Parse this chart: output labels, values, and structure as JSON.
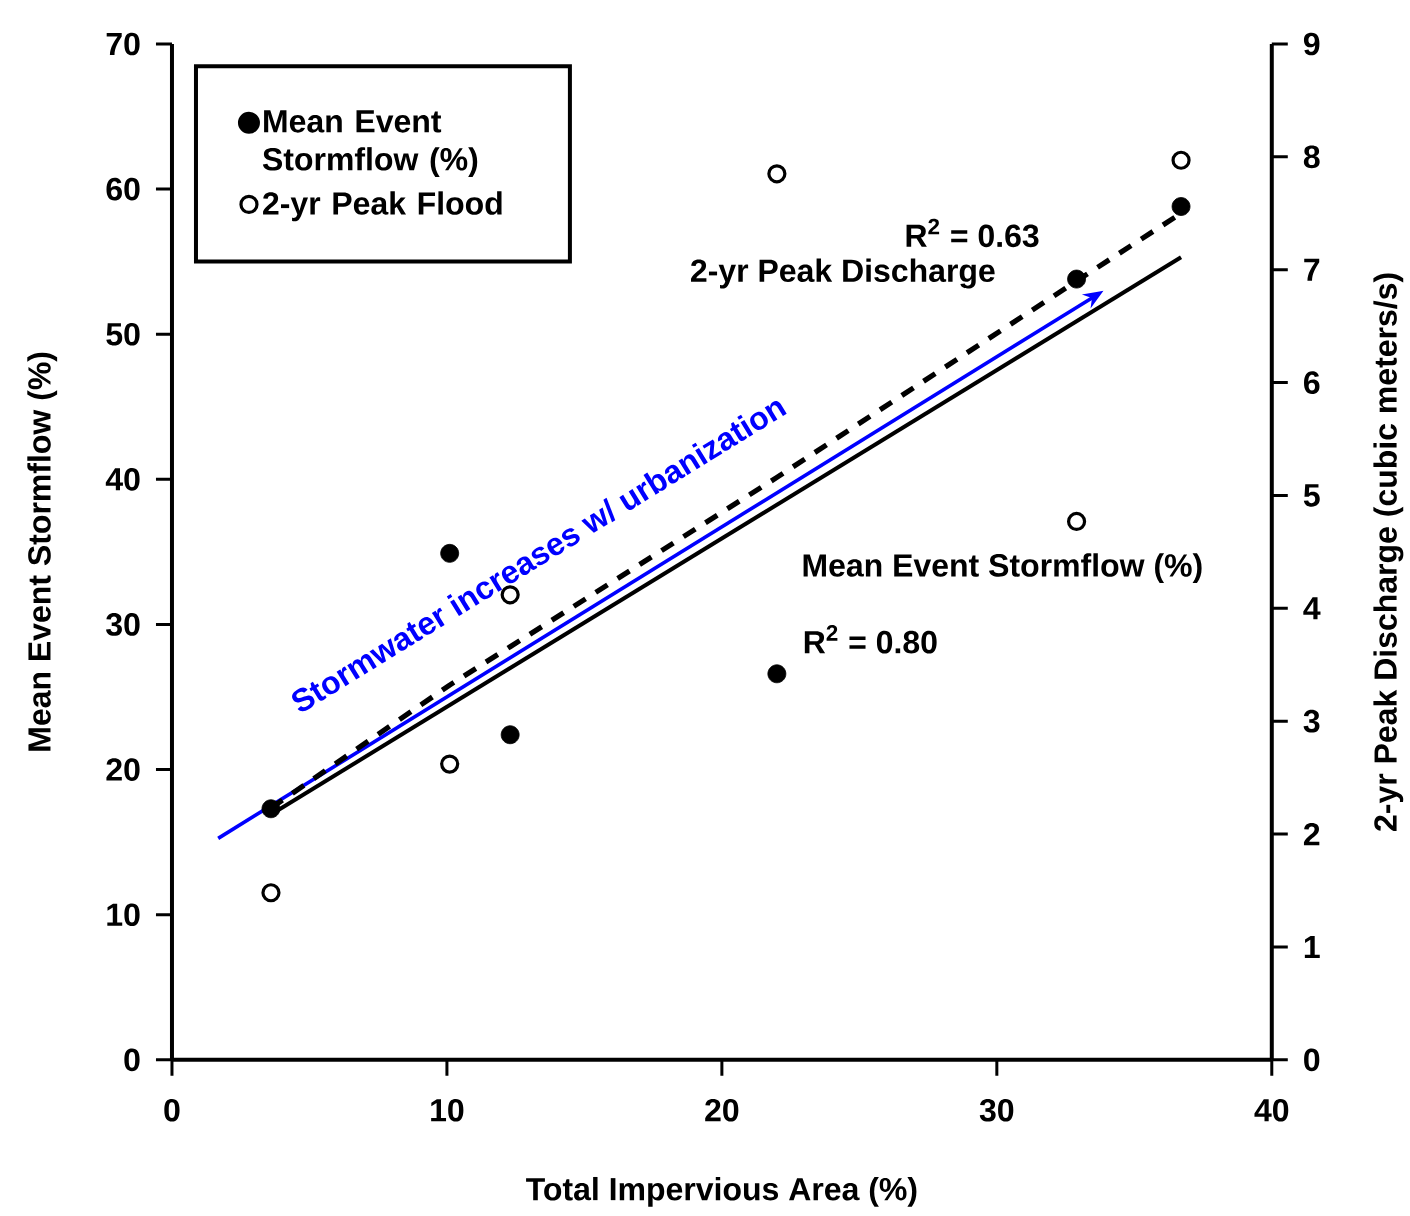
{
  "chart_data": {
    "type": "scatter",
    "xlabel": "Total Impervious Area (%)",
    "ylabel": "Mean Event Stormflow (%)",
    "y2label": "2-yr Peak Discharge (cubic meters/s)",
    "xlim": [
      0,
      40
    ],
    "xticks": [
      0,
      10,
      20,
      30,
      40
    ],
    "ylim": [
      0,
      70
    ],
    "yticks": [
      0,
      10,
      20,
      30,
      40,
      50,
      60,
      70
    ],
    "y2lim": [
      0,
      9
    ],
    "y2ticks": [
      0,
      1,
      2,
      3,
      4,
      5,
      6,
      7,
      8,
      9
    ],
    "grid": false,
    "legend": "top left",
    "series": [
      {
        "name": "Mean Event Stormflow (%)",
        "color": "#000000",
        "marker": "circle",
        "x": [
          3.6,
          10.1,
          12.3,
          22.0,
          32.9,
          36.7
        ],
        "values": [
          17.3,
          34.9,
          22.4,
          26.6,
          53.8,
          58.8
        ]
      },
      {
        "name": "2-yr Peak Flood",
        "color": "#000000",
        "marker": "circle",
        "axis": "y2",
        "x": [
          3.6,
          10.1,
          12.3,
          22.0,
          32.9,
          36.7
        ],
        "values": [
          1.48,
          2.62,
          4.12,
          7.85,
          4.77,
          7.97
        ]
      },
      {
        "type": "line",
        "color": "#000000",
        "line_style": "solid",
        "marker": "none",
        "x": [
          3.6,
          36.7
        ],
        "values": [
          16.9,
          55.3
        ]
      },
      {
        "type": "line",
        "color": "#000000",
        "line_style": "dashed",
        "marker": "none",
        "axis": "y2",
        "x": [
          3.6,
          10.1,
          12.3,
          22.0,
          32.9,
          36.7
        ],
        "values": [
          2.23,
          3.32,
          3.66,
          5.16,
          6.9,
          7.5
        ]
      }
    ],
    "annotations": [
      "R$^{2}$ = 0.63",
      "2-yr Peak Discharge",
      "Mean Event Stormflow (%)",
      "R$^{2}$ = 0.80",
      "Stormwater increases w/ urbanization"
    ]
  }
}
